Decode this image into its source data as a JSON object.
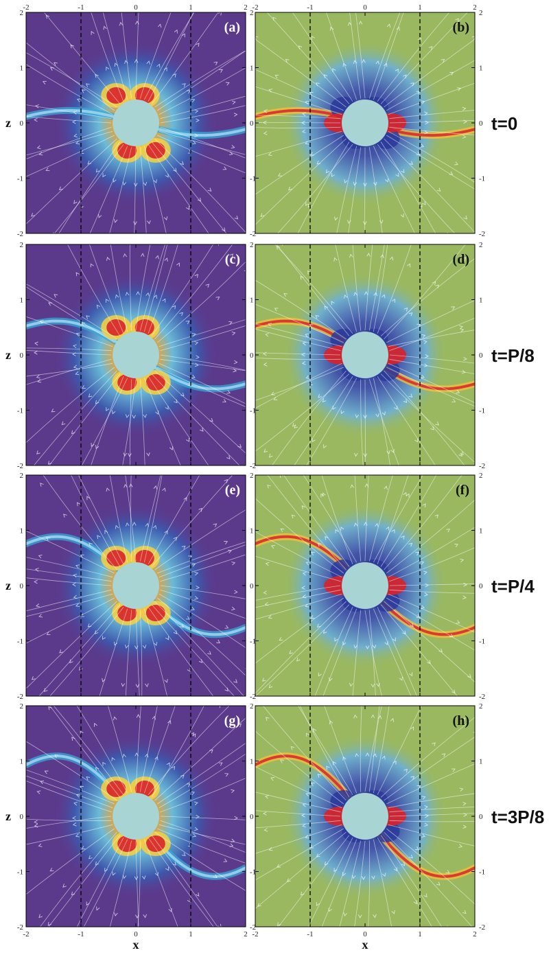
{
  "figure": {
    "axis_x_label": "x",
    "axis_z_label": "z",
    "x_ticks": [
      "-2",
      "-1",
      "0",
      "1",
      "2"
    ],
    "z_ticks": [
      "2",
      "1",
      "0",
      "-1",
      "-2"
    ],
    "x_tick_values": [
      -2,
      -1,
      0,
      1,
      2
    ],
    "z_tick_values": [
      2,
      1,
      0,
      -1,
      -2
    ],
    "x_range": [
      -2,
      2
    ],
    "z_range": [
      -2,
      2
    ],
    "dashed_guides_at_x": [
      -1,
      1
    ],
    "rows": [
      {
        "time_label": "t=0",
        "left_label": "(a)",
        "right_label": "(b)"
      },
      {
        "time_label": "t=P/8",
        "left_label": "(c)",
        "right_label": "(d)"
      },
      {
        "time_label": "t=P/4",
        "left_label": "(e)",
        "right_label": "(f)"
      },
      {
        "time_label": "t=3P/8",
        "left_label": "(g)",
        "right_label": "(h)"
      }
    ],
    "colors": {
      "left_background": "#5b3a8c",
      "right_background": "#9ab860",
      "star": "#a8d4d4",
      "hot": "#d8242a",
      "warm": "#f6c23a",
      "cool": "#38a8d8",
      "deep": "#2a3a9a"
    }
  }
}
